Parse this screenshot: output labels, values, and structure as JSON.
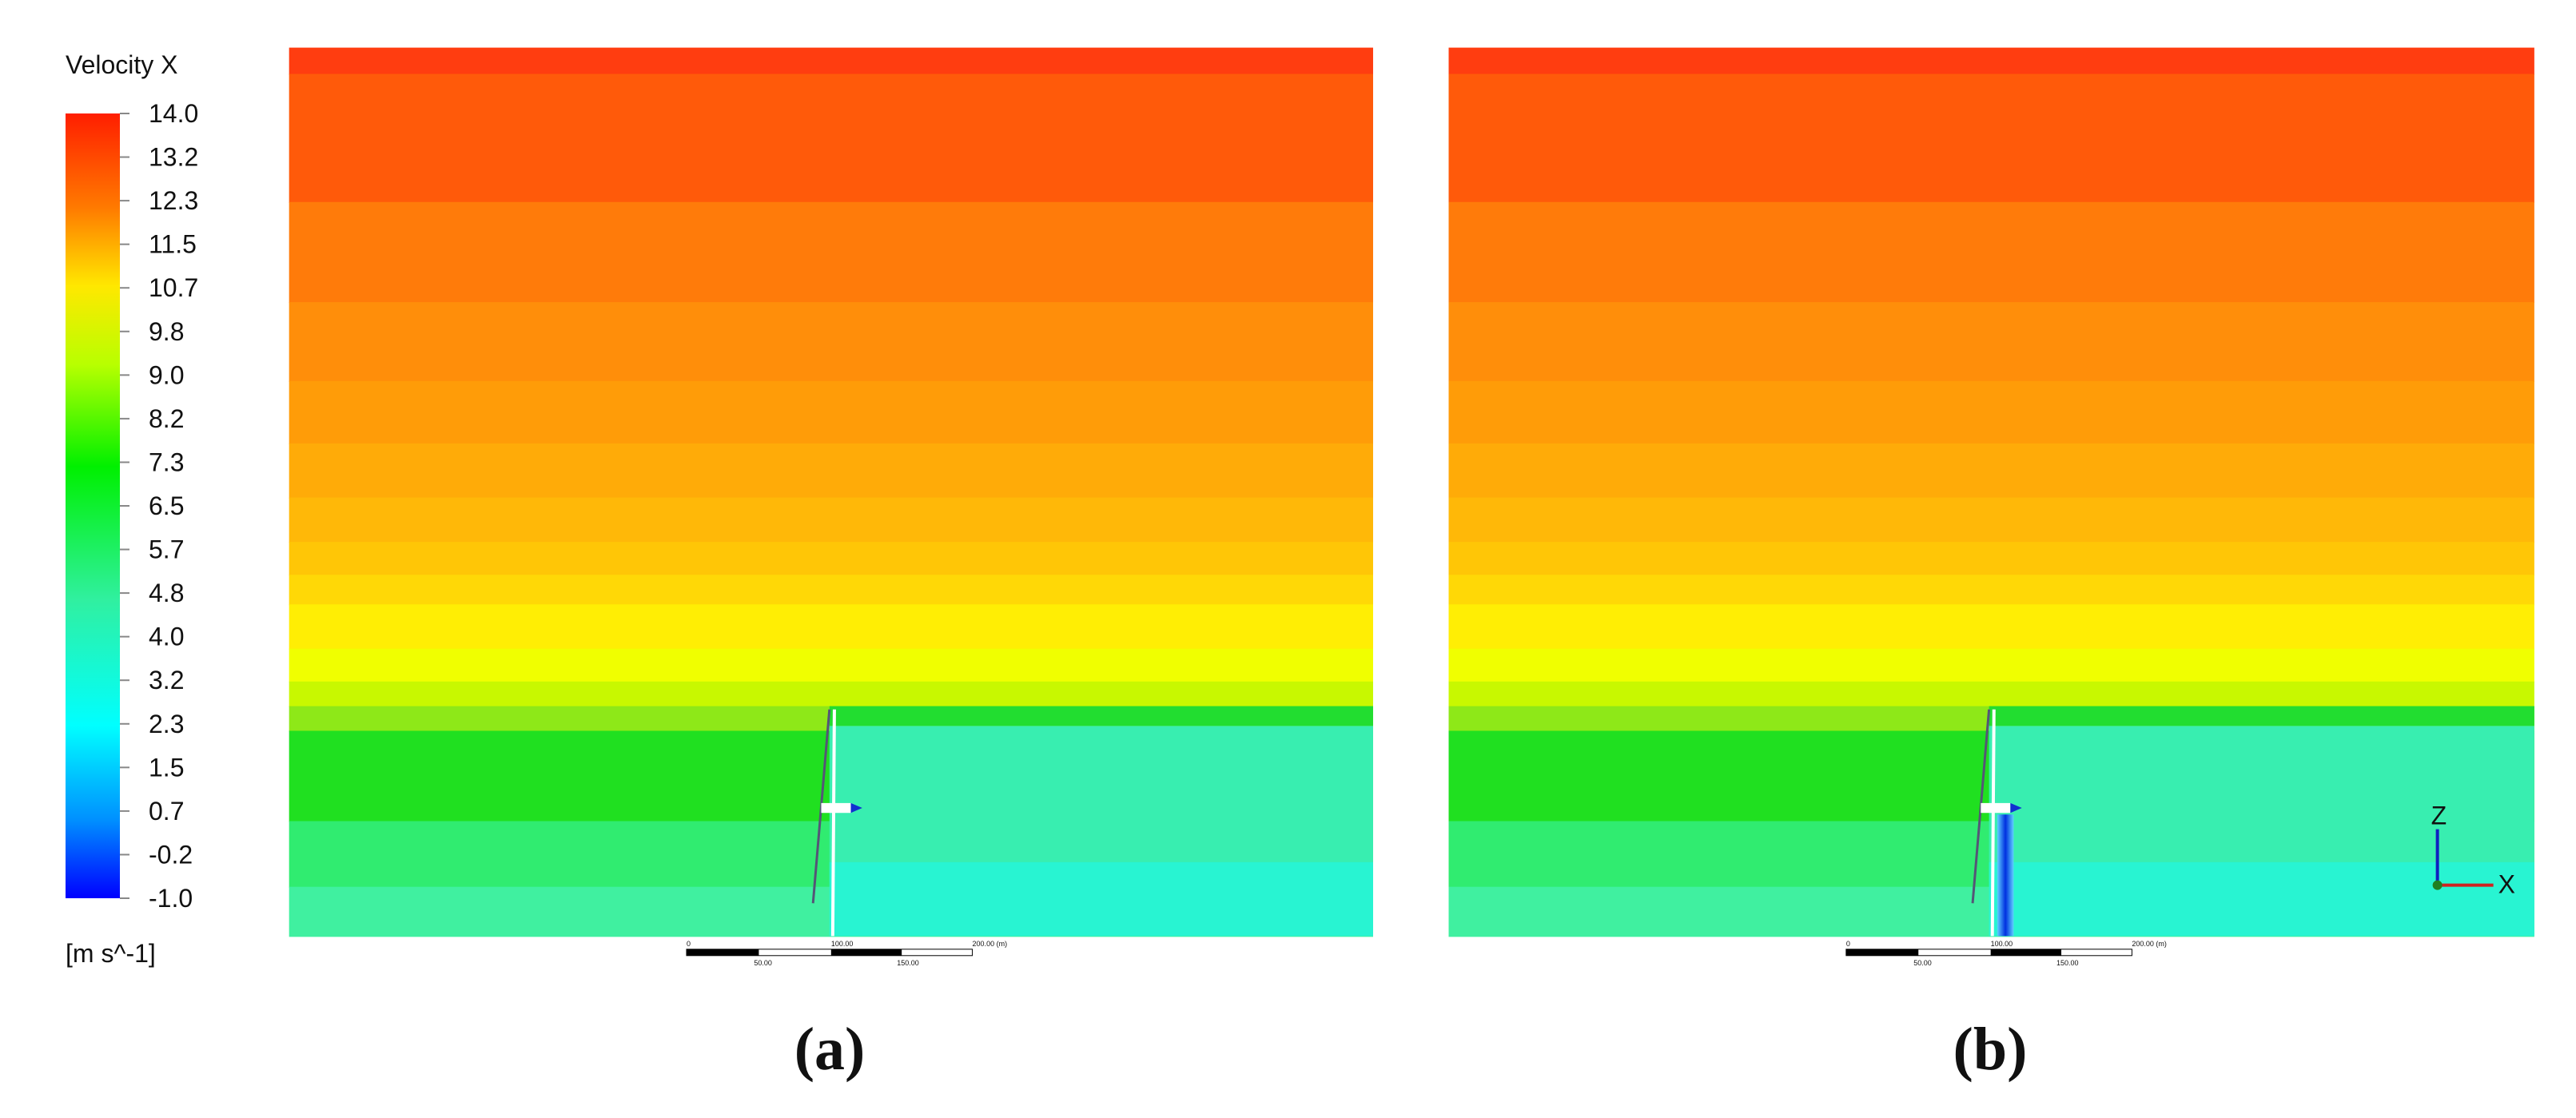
{
  "legend": {
    "title": "Velocity X",
    "labels": [
      "14.0",
      "13.2",
      "12.3",
      "11.5",
      "10.7",
      "9.8",
      "9.0",
      "8.2",
      "7.3",
      "6.5",
      "5.7",
      "4.8",
      "4.0",
      "3.2",
      "2.3",
      "1.5",
      "0.7",
      "-0.2",
      "-1.0"
    ],
    "unit": "[m s^-1]"
  },
  "scale_bar": {
    "top": [
      "0",
      "100.00",
      "200.00 (m)"
    ],
    "bottom": [
      "50.00",
      "150.00"
    ]
  },
  "axes_triad": {
    "z": "Z",
    "x": "X"
  },
  "panels": [
    {
      "label": "(a)"
    },
    {
      "label": "(b)"
    }
  ]
}
